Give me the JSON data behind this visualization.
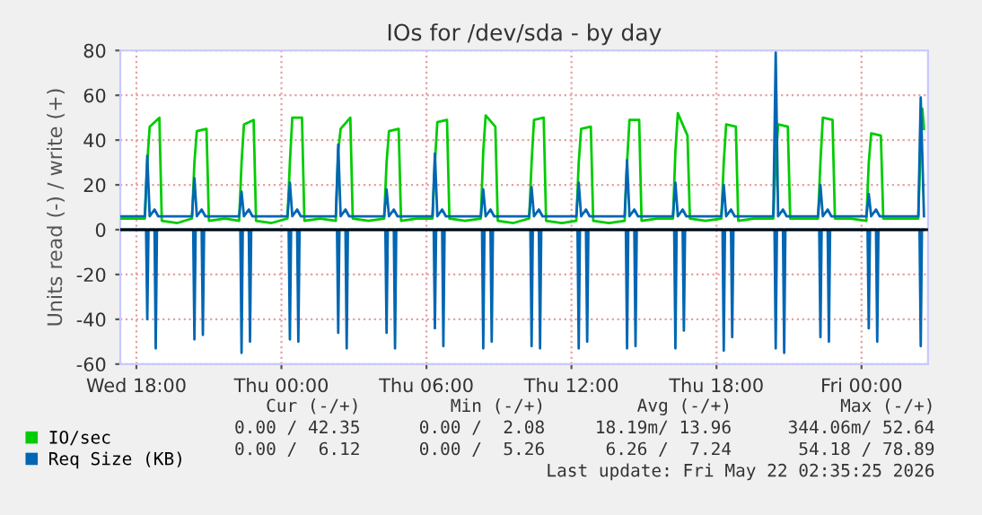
{
  "chart_data": {
    "type": "line",
    "title": "IOs for /dev/sda - by day",
    "ylabel": "Units read (-) / write (+)",
    "xlim": [
      "2026-05-20T17:20",
      "2026-05-22T02:45"
    ],
    "xticks": [
      {
        "value": "2026-05-20T18:00",
        "label": "Wed 18:00"
      },
      {
        "value": "2026-05-21T00:00",
        "label": "Thu 00:00"
      },
      {
        "value": "2026-05-21T06:00",
        "label": "Thu 06:00"
      },
      {
        "value": "2026-05-21T12:00",
        "label": "Thu 12:00"
      },
      {
        "value": "2026-05-21T18:00",
        "label": "Thu 18:00"
      },
      {
        "value": "2026-05-22T00:00",
        "label": "Fri 00:00"
      }
    ],
    "ylim": [
      -60,
      80
    ],
    "yticks": [
      -60,
      -40,
      -20,
      0,
      20,
      40,
      60,
      80
    ],
    "grid": true,
    "legend": "bottom",
    "ref_lines": [
      {
        "axis": "y",
        "value": 0,
        "color": "#000000"
      }
    ],
    "series": [
      {
        "name": "IO/sec",
        "color": "#00cc00",
        "x": [
          "2026-05-20T17:21",
          "2026-05-20T18:21",
          "2026-05-20T18:27",
          "2026-05-20T18:33",
          "2026-05-20T18:57",
          "2026-05-20T19:03",
          "2026-05-20T19:42",
          "2026-05-20T20:18",
          "2026-05-20T20:24",
          "2026-05-20T20:30",
          "2026-05-20T20:54",
          "2026-05-20T21:00",
          "2026-05-20T21:39",
          "2026-05-20T22:15",
          "2026-05-20T22:21",
          "2026-05-20T22:27",
          "2026-05-20T22:51",
          "2026-05-20T22:57",
          "2026-05-20T23:36",
          "2026-05-21T00:15",
          "2026-05-21T00:21",
          "2026-05-21T00:27",
          "2026-05-21T00:51",
          "2026-05-21T00:57",
          "2026-05-21T01:36",
          "2026-05-21T02:15",
          "2026-05-21T02:21",
          "2026-05-21T02:27",
          "2026-05-21T02:51",
          "2026-05-21T02:57",
          "2026-05-21T03:36",
          "2026-05-21T04:15",
          "2026-05-21T04:21",
          "2026-05-21T04:27",
          "2026-05-21T04:51",
          "2026-05-21T04:57",
          "2026-05-21T05:36",
          "2026-05-21T06:15",
          "2026-05-21T06:21",
          "2026-05-21T06:27",
          "2026-05-21T06:51",
          "2026-05-21T06:57",
          "2026-05-21T07:36",
          "2026-05-21T08:15",
          "2026-05-21T08:21",
          "2026-05-21T08:27",
          "2026-05-21T08:51",
          "2026-05-21T08:57",
          "2026-05-21T09:36",
          "2026-05-21T10:15",
          "2026-05-21T10:21",
          "2026-05-21T10:27",
          "2026-05-21T10:51",
          "2026-05-21T10:57",
          "2026-05-21T11:36",
          "2026-05-21T12:12",
          "2026-05-21T12:18",
          "2026-05-21T12:24",
          "2026-05-21T12:48",
          "2026-05-21T12:54",
          "2026-05-21T13:33",
          "2026-05-21T14:12",
          "2026-05-21T14:18",
          "2026-05-21T14:24",
          "2026-05-21T14:48",
          "2026-05-21T14:54",
          "2026-05-21T15:33",
          "2026-05-21T16:12",
          "2026-05-21T16:18",
          "2026-05-21T16:24",
          "2026-05-21T16:48",
          "2026-05-21T16:54",
          "2026-05-21T17:33",
          "2026-05-21T18:12",
          "2026-05-21T18:18",
          "2026-05-21T18:24",
          "2026-05-21T18:48",
          "2026-05-21T18:54",
          "2026-05-21T19:33",
          "2026-05-21T20:21",
          "2026-05-21T20:27",
          "2026-05-21T20:33",
          "2026-05-21T20:57",
          "2026-05-21T21:03",
          "2026-05-21T21:42",
          "2026-05-21T22:12",
          "2026-05-21T22:18",
          "2026-05-21T22:24",
          "2026-05-21T22:48",
          "2026-05-21T22:54",
          "2026-05-21T23:33",
          "2026-05-22T00:12",
          "2026-05-22T00:18",
          "2026-05-22T00:24",
          "2026-05-22T00:48",
          "2026-05-22T00:54",
          "2026-05-22T01:33",
          "2026-05-22T02:21",
          "2026-05-22T02:27",
          "2026-05-22T02:31",
          "2026-05-22T02:35"
        ],
        "values": [
          5,
          5,
          30,
          46,
          50,
          4,
          3,
          5,
          30,
          44,
          45,
          4,
          5,
          4,
          30,
          47,
          49,
          4,
          3,
          5,
          30,
          50,
          50,
          4,
          5,
          4,
          35,
          45,
          50,
          5,
          4,
          5,
          30,
          44,
          45,
          4,
          5,
          5,
          30,
          48,
          49,
          5,
          4,
          5,
          35,
          51,
          46,
          4,
          3,
          5,
          30,
          49,
          50,
          4,
          3,
          4,
          30,
          45,
          46,
          4,
          3,
          4,
          30,
          49,
          49,
          4,
          5,
          5,
          35,
          52,
          42,
          5,
          4,
          5,
          30,
          47,
          46,
          4,
          5,
          5,
          30,
          47,
          46,
          5,
          5,
          5,
          30,
          50,
          49,
          5,
          5,
          4,
          30,
          43,
          42,
          5,
          5,
          5,
          40,
          54,
          45
        ]
      },
      {
        "name": "Req Size (KB)",
        "color": "#0066b3",
        "x": [
          "2026-05-20T17:21",
          "2026-05-20T18:21",
          "2026-05-20T18:27",
          "2026-05-20T18:33",
          "2026-05-20T18:45",
          "2026-05-20T18:54",
          "2026-05-20T19:27",
          "2026-05-20T20:18",
          "2026-05-20T20:24",
          "2026-05-20T20:30",
          "2026-05-20T20:42",
          "2026-05-20T20:51",
          "2026-05-20T21:24",
          "2026-05-20T22:15",
          "2026-05-20T22:21",
          "2026-05-20T22:27",
          "2026-05-20T22:39",
          "2026-05-20T22:48",
          "2026-05-20T23:21",
          "2026-05-21T00:15",
          "2026-05-21T00:21",
          "2026-05-21T00:27",
          "2026-05-21T00:39",
          "2026-05-21T00:48",
          "2026-05-21T01:21",
          "2026-05-21T02:15",
          "2026-05-21T02:21",
          "2026-05-21T02:27",
          "2026-05-21T02:39",
          "2026-05-21T02:48",
          "2026-05-21T03:21",
          "2026-05-21T04:15",
          "2026-05-21T04:21",
          "2026-05-21T04:27",
          "2026-05-21T04:39",
          "2026-05-21T04:48",
          "2026-05-21T05:21",
          "2026-05-21T06:15",
          "2026-05-21T06:21",
          "2026-05-21T06:27",
          "2026-05-21T06:39",
          "2026-05-21T06:48",
          "2026-05-21T07:21",
          "2026-05-21T08:15",
          "2026-05-21T08:21",
          "2026-05-21T08:27",
          "2026-05-21T08:39",
          "2026-05-21T08:48",
          "2026-05-21T09:21",
          "2026-05-21T10:15",
          "2026-05-21T10:21",
          "2026-05-21T10:27",
          "2026-05-21T10:39",
          "2026-05-21T10:48",
          "2026-05-21T11:21",
          "2026-05-21T12:12",
          "2026-05-21T12:18",
          "2026-05-21T12:24",
          "2026-05-21T12:36",
          "2026-05-21T12:45",
          "2026-05-21T13:18",
          "2026-05-21T14:12",
          "2026-05-21T14:18",
          "2026-05-21T14:24",
          "2026-05-21T14:36",
          "2026-05-21T14:45",
          "2026-05-21T15:18",
          "2026-05-21T16:12",
          "2026-05-21T16:18",
          "2026-05-21T16:24",
          "2026-05-21T16:36",
          "2026-05-21T16:45",
          "2026-05-21T17:18",
          "2026-05-21T18:12",
          "2026-05-21T18:18",
          "2026-05-21T18:24",
          "2026-05-21T18:36",
          "2026-05-21T18:45",
          "2026-05-21T19:18",
          "2026-05-21T20:21",
          "2026-05-21T20:27",
          "2026-05-21T20:33",
          "2026-05-21T20:45",
          "2026-05-21T20:54",
          "2026-05-21T21:27",
          "2026-05-21T22:12",
          "2026-05-21T22:18",
          "2026-05-21T22:24",
          "2026-05-21T22:36",
          "2026-05-21T22:45",
          "2026-05-21T23:18",
          "2026-05-22T00:12",
          "2026-05-22T00:18",
          "2026-05-22T00:24",
          "2026-05-22T00:36",
          "2026-05-22T00:45",
          "2026-05-22T01:18",
          "2026-05-22T02:21",
          "2026-05-22T02:27",
          "2026-05-22T02:35"
        ],
        "values": [
          6,
          6,
          33,
          6,
          9,
          6,
          6,
          6,
          23,
          6,
          9,
          6,
          6,
          6,
          17,
          6,
          9,
          6,
          6,
          6,
          21,
          6,
          9,
          6,
          6,
          6,
          38,
          6,
          9,
          6,
          6,
          6,
          18,
          6,
          9,
          6,
          6,
          6,
          34,
          6,
          9,
          6,
          6,
          6,
          18,
          6,
          9,
          6,
          6,
          6,
          19,
          6,
          9,
          6,
          6,
          6,
          21,
          6,
          9,
          6,
          6,
          6,
          31,
          6,
          9,
          6,
          6,
          6,
          21,
          6,
          9,
          6,
          6,
          6,
          20,
          6,
          9,
          6,
          6,
          6,
          79,
          6,
          9,
          6,
          6,
          6,
          20,
          6,
          9,
          6,
          6,
          6,
          16,
          6,
          9,
          6,
          6,
          6,
          59,
          6
        ]
      },
      {
        "color": "#0066b3",
        "x": [
          "2026-05-20T17:21",
          "2026-05-20T18:24",
          "2026-05-20T18:27",
          "2026-05-20T18:30",
          "2026-05-20T18:45",
          "2026-05-20T18:48",
          "2026-05-20T18:51",
          "2026-05-20T20:21",
          "2026-05-20T20:24",
          "2026-05-20T20:27",
          "2026-05-20T20:42",
          "2026-05-20T20:45",
          "2026-05-20T20:48",
          "2026-05-20T22:18",
          "2026-05-20T22:21",
          "2026-05-20T22:24",
          "2026-05-20T22:39",
          "2026-05-20T22:42",
          "2026-05-20T22:45",
          "2026-05-21T00:18",
          "2026-05-21T00:21",
          "2026-05-21T00:24",
          "2026-05-21T00:39",
          "2026-05-21T00:42",
          "2026-05-21T00:45",
          "2026-05-21T02:18",
          "2026-05-21T02:21",
          "2026-05-21T02:24",
          "2026-05-21T02:39",
          "2026-05-21T02:42",
          "2026-05-21T02:45",
          "2026-05-21T04:18",
          "2026-05-21T04:21",
          "2026-05-21T04:24",
          "2026-05-21T04:39",
          "2026-05-21T04:42",
          "2026-05-21T04:45",
          "2026-05-21T06:18",
          "2026-05-21T06:21",
          "2026-05-21T06:24",
          "2026-05-21T06:39",
          "2026-05-21T06:42",
          "2026-05-21T06:45",
          "2026-05-21T08:18",
          "2026-05-21T08:21",
          "2026-05-21T08:24",
          "2026-05-21T08:39",
          "2026-05-21T08:42",
          "2026-05-21T08:45",
          "2026-05-21T10:18",
          "2026-05-21T10:21",
          "2026-05-21T10:24",
          "2026-05-21T10:39",
          "2026-05-21T10:42",
          "2026-05-21T10:45",
          "2026-05-21T12:15",
          "2026-05-21T12:18",
          "2026-05-21T12:21",
          "2026-05-21T12:36",
          "2026-05-21T12:39",
          "2026-05-21T12:42",
          "2026-05-21T14:15",
          "2026-05-21T14:18",
          "2026-05-21T14:21",
          "2026-05-21T14:36",
          "2026-05-21T14:39",
          "2026-05-21T14:42",
          "2026-05-21T16:15",
          "2026-05-21T16:18",
          "2026-05-21T16:21",
          "2026-05-21T16:36",
          "2026-05-21T16:39",
          "2026-05-21T16:42",
          "2026-05-21T18:15",
          "2026-05-21T18:18",
          "2026-05-21T18:21",
          "2026-05-21T18:36",
          "2026-05-21T18:39",
          "2026-05-21T18:42",
          "2026-05-21T20:24",
          "2026-05-21T20:27",
          "2026-05-21T20:30",
          "2026-05-21T20:45",
          "2026-05-21T20:48",
          "2026-05-21T20:51",
          "2026-05-21T22:15",
          "2026-05-21T22:18",
          "2026-05-21T22:21",
          "2026-05-21T22:36",
          "2026-05-21T22:39",
          "2026-05-21T22:42",
          "2026-05-22T00:15",
          "2026-05-22T00:18",
          "2026-05-22T00:21",
          "2026-05-22T00:36",
          "2026-05-22T00:39",
          "2026-05-22T00:42",
          "2026-05-22T02:24",
          "2026-05-22T02:27",
          "2026-05-22T02:30",
          "2026-05-22T02:35"
        ],
        "values": [
          0,
          0,
          -40,
          0,
          0,
          -53,
          0,
          0,
          -49,
          0,
          0,
          -47,
          0,
          0,
          -55,
          0,
          0,
          -50,
          0,
          0,
          -49,
          0,
          0,
          -50,
          0,
          0,
          -46,
          0,
          0,
          -53,
          0,
          0,
          -46,
          0,
          0,
          -53,
          0,
          0,
          -44,
          0,
          0,
          -52,
          0,
          0,
          -53,
          0,
          0,
          -50,
          0,
          0,
          -52,
          0,
          0,
          -53,
          0,
          0,
          -53,
          0,
          0,
          -50,
          0,
          0,
          -53,
          0,
          0,
          -52,
          0,
          0,
          -53,
          0,
          0,
          -45,
          0,
          0,
          -54,
          0,
          0,
          -48,
          0,
          0,
          -53,
          0,
          0,
          -55,
          0,
          0,
          -48,
          0,
          0,
          -50,
          0,
          0,
          -44,
          0,
          0,
          -50,
          0,
          0,
          -52,
          0,
          0
        ]
      }
    ],
    "annotations": [
      "Cur (-/+)",
      "Min (-/+)",
      "Avg (-/+)",
      "Max (-/+)",
      "0.00 / 42.35",
      "0.00 /  2.08",
      "18.19m/ 13.96",
      "344.06m/ 52.64",
      "0.00 /  6.12",
      "0.00 /  5.26",
      "6.26 /  7.24",
      "54.18 / 78.89",
      "Last update: Fri May 22 02:35:25 2026"
    ]
  }
}
